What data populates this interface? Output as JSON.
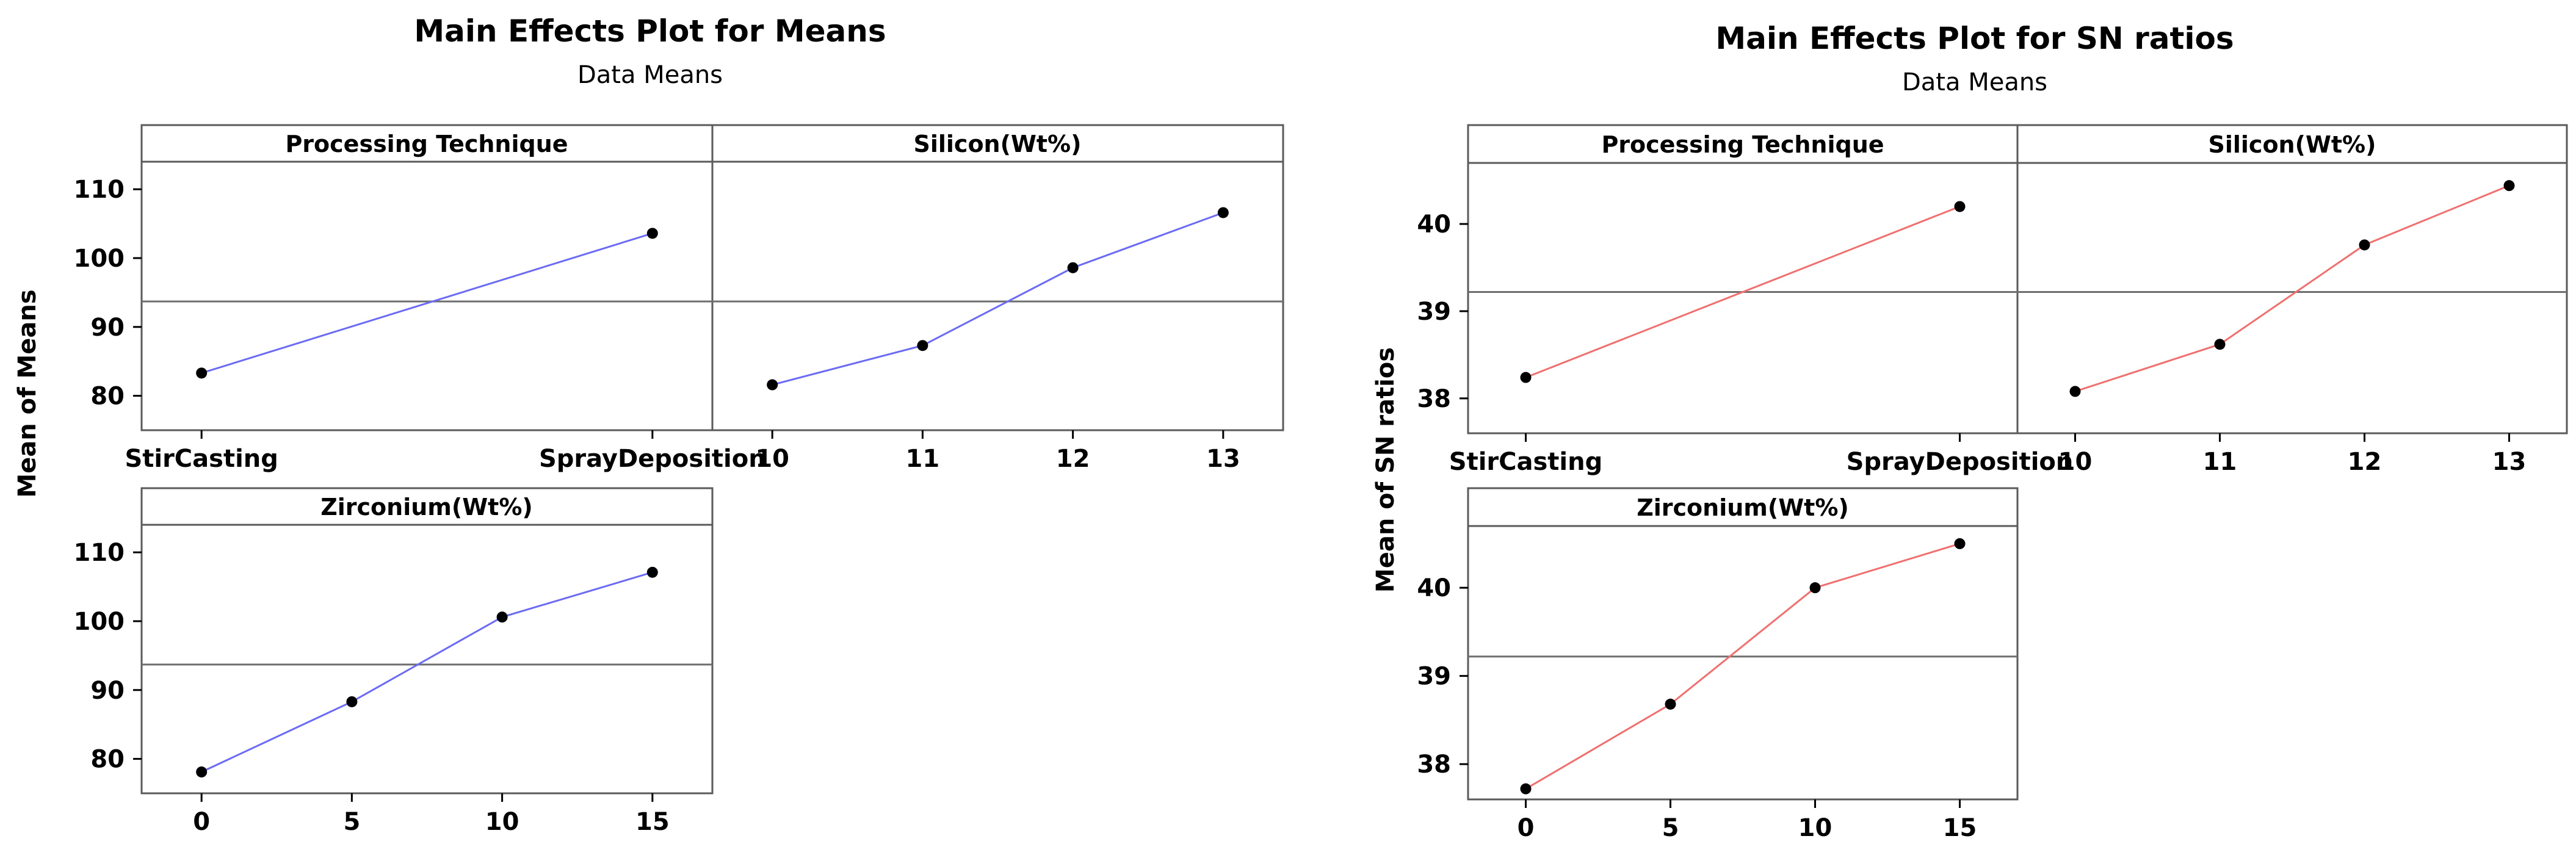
{
  "colors": {
    "means_line": "#6b6bf5",
    "sn_line": "#f07070",
    "point": "#000000",
    "reference": "#6e6e6e"
  },
  "chart_data": [
    {
      "type": "line",
      "id": "means",
      "title": "Main Effects Plot for Means",
      "subtitle": "Data Means",
      "ylabel": "Mean of Means",
      "ylim": [
        75,
        114
      ],
      "yticks": [
        "80",
        "90",
        "100",
        "110"
      ],
      "reference": 93.7,
      "panels": [
        {
          "title": "Processing Technique",
          "categories": [
            "StirCasting",
            "SprayDeposition"
          ],
          "values": [
            83.3,
            103.6
          ]
        },
        {
          "title": "Silicon(Wt%)",
          "categories": [
            "10",
            "11",
            "12",
            "13"
          ],
          "values": [
            81.6,
            87.3,
            98.6,
            106.6
          ]
        },
        {
          "title": "Zirconium(Wt%)",
          "categories": [
            "0",
            "5",
            "10",
            "15"
          ],
          "values": [
            78.1,
            88.3,
            100.6,
            107.1
          ]
        }
      ]
    },
    {
      "type": "line",
      "id": "sn",
      "title": "Main Effects Plot for SN ratios",
      "subtitle": "Data Means",
      "ylabel": "Mean of SN ratios",
      "ylim": [
        37.6,
        40.7
      ],
      "yticks": [
        "38",
        "39",
        "40"
      ],
      "reference": 39.22,
      "panels": [
        {
          "title": "Processing Technique",
          "categories": [
            "StirCasting",
            "SprayDeposition"
          ],
          "values": [
            38.24,
            40.2
          ]
        },
        {
          "title": "Silicon(Wt%)",
          "categories": [
            "10",
            "11",
            "12",
            "13"
          ],
          "values": [
            38.08,
            38.62,
            39.76,
            40.44
          ]
        },
        {
          "title": "Zirconium(Wt%)",
          "categories": [
            "0",
            "5",
            "10",
            "15"
          ],
          "values": [
            37.72,
            38.68,
            40.0,
            40.5
          ]
        }
      ]
    }
  ]
}
